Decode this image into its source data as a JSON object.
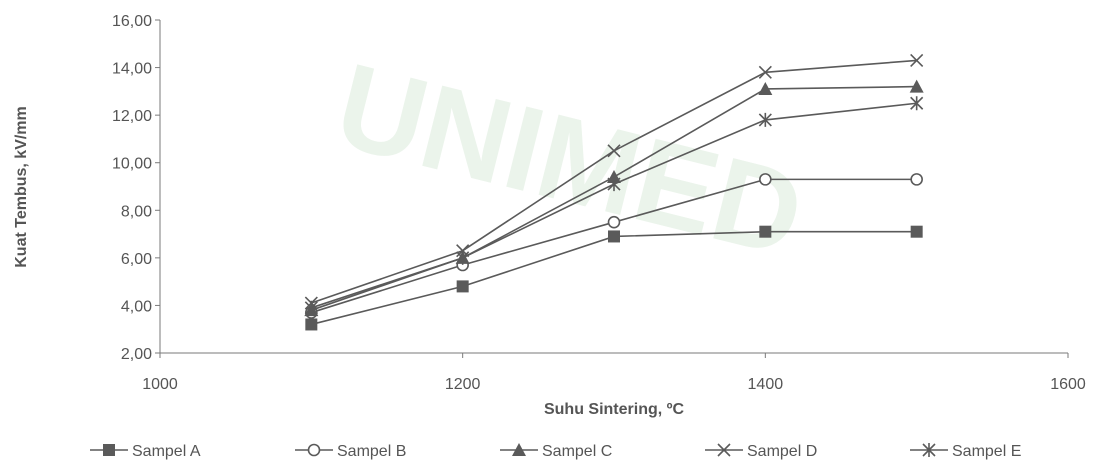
{
  "chart_data": {
    "type": "line",
    "xlabel": "Suhu Sintering, ºC",
    "ylabel": "Kuat Tembus, kV/mm",
    "xlim": [
      1000,
      1600
    ],
    "ylim": [
      2,
      16
    ],
    "x_ticks": [
      "1000",
      "1200",
      "1400",
      "1600"
    ],
    "y_ticks": [
      "2,00",
      "4,00",
      "6,00",
      "8,00",
      "10,00",
      "12,00",
      "14,00",
      "16,00"
    ],
    "x": [
      1100,
      1200,
      1300,
      1400,
      1500
    ],
    "series": [
      {
        "name": "Sampel A",
        "marker": "square",
        "values": [
          3.2,
          4.8,
          6.9,
          7.1,
          7.1
        ]
      },
      {
        "name": "Sampel B",
        "marker": "circle",
        "values": [
          3.7,
          5.7,
          7.5,
          9.3,
          9.3
        ]
      },
      {
        "name": "Sampel C",
        "marker": "triangle",
        "values": [
          3.8,
          6.0,
          9.4,
          13.1,
          13.2
        ]
      },
      {
        "name": "Sampel D",
        "marker": "x",
        "values": [
          4.1,
          6.3,
          10.5,
          13.8,
          14.3
        ]
      },
      {
        "name": "Sampel E",
        "marker": "star",
        "values": [
          3.9,
          6.0,
          9.1,
          11.8,
          12.5
        ]
      }
    ],
    "grid": false,
    "legend_position": "bottom",
    "line_color": "#5a5a5a",
    "watermark_text": "UNIMED"
  }
}
